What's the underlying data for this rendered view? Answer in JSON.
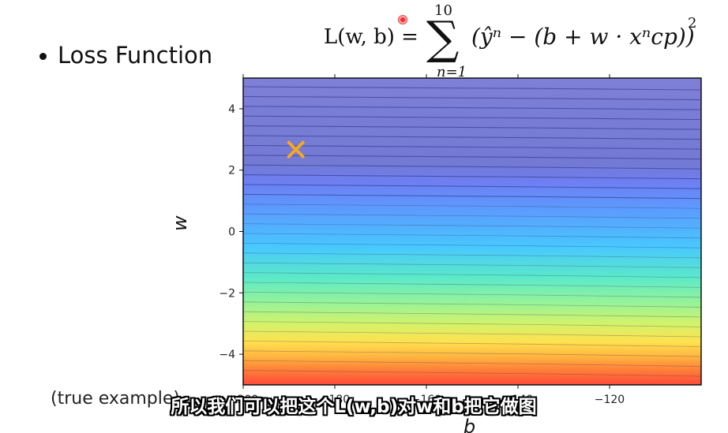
{
  "slide": {
    "bullet_text": "Loss Function",
    "bottom_left_text": "(true example)",
    "subtitle": "所以我们可以把这个L(w,b)对w和b把它做图"
  },
  "equation": {
    "lhs": "L(w, b) =",
    "sum_upper": "10",
    "sum_lower": "n=1",
    "body": "(ŷⁿ − (b + w · xⁿcp))",
    "exponent": "2"
  },
  "chart_data": {
    "type": "heatmap",
    "title": "",
    "xlabel": "b",
    "ylabel": "w",
    "xlim": [
      -200,
      -100
    ],
    "ylim": [
      -5,
      5
    ],
    "x_ticks": [
      "−200",
      "−180",
      "−160",
      "−140",
      "−120"
    ],
    "y_ticks": [
      "4",
      "2",
      "0",
      "−2",
      "−4"
    ],
    "y_tick_values": [
      4,
      2,
      0,
      -2,
      -4
    ],
    "x_tick_values": [
      -200,
      -180,
      -160,
      -140,
      -120
    ],
    "colormap": "jet",
    "marker": {
      "symbol": "x",
      "color": "#f5a623",
      "b": -188.5,
      "w": 2.67
    },
    "plot_colors": [
      "#7f7fd6",
      "#6f74e6",
      "#5f8fff",
      "#46b2ff",
      "#45d4f2",
      "#60e6c4",
      "#8ff09d",
      "#c4f36d",
      "#f4f25d",
      "#ffd044",
      "#ffa53d",
      "#ff7a3a",
      "#ff4f3a"
    ],
    "contour_levels": 30
  }
}
